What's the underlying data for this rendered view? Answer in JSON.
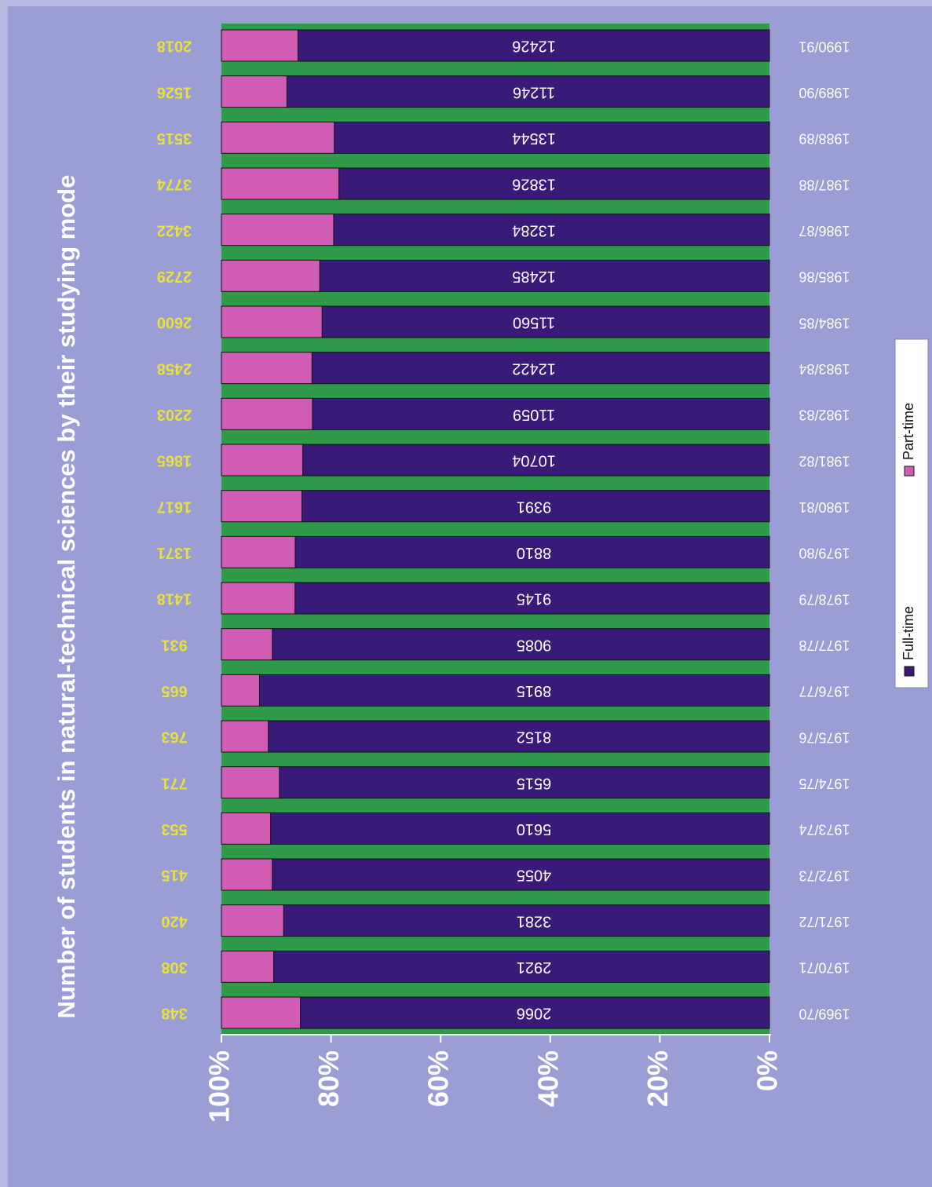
{
  "chart_data": {
    "type": "stacked_bar_100",
    "title": "Number of students in natural-technical sciences by their studying mode",
    "categories": [
      "1969/70",
      "1970/71",
      "1971/72",
      "1972/73",
      "1973/74",
      "1974/75",
      "1975/76",
      "1976/77",
      "1977/78",
      "1978/79",
      "1979/80",
      "1980/81",
      "1981/82",
      "1982/83",
      "1983/84",
      "1984/85",
      "1985/86",
      "1986/87",
      "1987/88",
      "1988/89",
      "1989/90",
      "1990/91"
    ],
    "series": [
      {
        "name": "Full-time",
        "color": "#3a1a78",
        "values": [
          2066,
          2921,
          3281,
          4055,
          5610,
          6515,
          8152,
          8915,
          9085,
          9145,
          8810,
          9391,
          10704,
          11059,
          12422,
          11560,
          12485,
          13284,
          13826,
          13544,
          11246,
          12426
        ]
      },
      {
        "name": "Part-time",
        "color": "#d05cb4",
        "values": [
          348,
          308,
          420,
          415,
          553,
          771,
          763,
          665,
          931,
          1418,
          1371,
          1617,
          1865,
          2203,
          2458,
          2600,
          2729,
          3422,
          3774,
          3515,
          1526,
          2018
        ]
      }
    ],
    "ylim": [
      0,
      100
    ],
    "yticks": [
      {
        "value": 0,
        "label": "0%"
      },
      {
        "value": 20,
        "label": "20%"
      },
      {
        "value": 40,
        "label": "40%"
      },
      {
        "value": 60,
        "label": "60%"
      },
      {
        "value": 80,
        "label": "80%"
      },
      {
        "value": 100,
        "label": "100%"
      }
    ]
  }
}
